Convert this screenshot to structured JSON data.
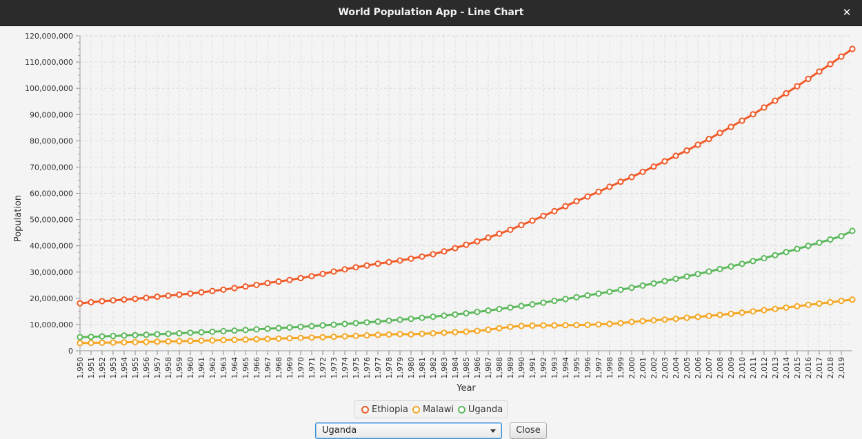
{
  "window": {
    "title": "World Population App - Line Chart",
    "close_glyph": "✕"
  },
  "controls": {
    "country_selected": "Uganda",
    "close_label": "Close"
  },
  "chart_data": {
    "type": "line",
    "title": "",
    "xlabel": "Year",
    "ylabel": "Population",
    "ylim": [
      0,
      120000000
    ],
    "yticks": [
      0,
      10000000,
      20000000,
      30000000,
      40000000,
      50000000,
      60000000,
      70000000,
      80000000,
      90000000,
      100000000,
      110000000,
      120000000
    ],
    "ytick_labels": [
      "0",
      "10,000,000",
      "20,000,000",
      "30,000,000",
      "40,000,000",
      "50,000,000",
      "60,000,000",
      "70,000,000",
      "80,000,000",
      "90,000,000",
      "100,000,000",
      "110,000,000",
      "120,000,000"
    ],
    "xlim": [
      1950,
      2020
    ],
    "x_start": 1950,
    "x_end": 2020,
    "x_tick_labels": [
      "1,950",
      "1,951",
      "1,952",
      "1,953",
      "1,954",
      "1,955",
      "1,956",
      "1,957",
      "1,958",
      "1,959",
      "1,960",
      "1,961",
      "1,962",
      "1,963",
      "1,964",
      "1,965",
      "1,966",
      "1,967",
      "1,968",
      "1,969",
      "1,970",
      "1,971",
      "1,972",
      "1,973",
      "1,974",
      "1,975",
      "1,976",
      "1,977",
      "1,978",
      "1,979",
      "1,980",
      "1,981",
      "1,982",
      "1,983",
      "1,984",
      "1,985",
      "1,986",
      "1,987",
      "1,988",
      "1,989",
      "1,990",
      "1,991",
      "1,992",
      "1,993",
      "1,994",
      "1,995",
      "1,996",
      "1,997",
      "1,998",
      "1,999",
      "2,000",
      "2,001",
      "2,002",
      "2,003",
      "2,004",
      "2,005",
      "2,006",
      "2,007",
      "2,008",
      "2,009",
      "2,010",
      "2,011",
      "2,012",
      "2,013",
      "2,014",
      "2,015",
      "2,016",
      "2,017",
      "2,018",
      "2,019"
    ],
    "grid": true,
    "legend_position": "bottom",
    "series": [
      {
        "name": "Ethiopia",
        "color": "#f05a28",
        "values": [
          18100000,
          18500000,
          18900000,
          19200000,
          19500000,
          19800000,
          20200000,
          20600000,
          21000000,
          21400000,
          21800000,
          22300000,
          22800000,
          23300000,
          23900000,
          24500000,
          25100000,
          25800000,
          26400000,
          27000000,
          27700000,
          28400000,
          29300000,
          30200000,
          31000000,
          31800000,
          32500000,
          33200000,
          33800000,
          34400000,
          35100000,
          35900000,
          36800000,
          37900000,
          39100000,
          40400000,
          41700000,
          43100000,
          44600000,
          46100000,
          47900000,
          49600000,
          51400000,
          53200000,
          55100000,
          57000000,
          58800000,
          60600000,
          62500000,
          64400000,
          66200000,
          68200000,
          70200000,
          72200000,
          74300000,
          76300000,
          78500000,
          80700000,
          83000000,
          85300000,
          87700000,
          90100000,
          92700000,
          95300000,
          98100000,
          100800000,
          103600000,
          106400000,
          109200000,
          112100000,
          115000000
        ]
      },
      {
        "name": "Malawi",
        "color": "#f5a623",
        "values": [
          2950000,
          3010000,
          3080000,
          3150000,
          3230000,
          3310000,
          3390000,
          3480000,
          3570000,
          3660000,
          3750000,
          3850000,
          3950000,
          4060000,
          4170000,
          4280000,
          4400000,
          4520000,
          4640000,
          4770000,
          4900000,
          5040000,
          5190000,
          5350000,
          5510000,
          5680000,
          5860000,
          6040000,
          6210000,
          6390000,
          6250000,
          6490000,
          6680000,
          6870000,
          7080000,
          7290000,
          7570000,
          8020000,
          8580000,
          9140000,
          9450000,
          9580000,
          9690000,
          9690000,
          9740000,
          9800000,
          9890000,
          10040000,
          10250000,
          10520000,
          10990000,
          11340000,
          11610000,
          11880000,
          12180000,
          12590000,
          12920000,
          13280000,
          13670000,
          14080000,
          14540000,
          15010000,
          15490000,
          15970000,
          16470000,
          16970000,
          17480000,
          17980000,
          18490000,
          19000000,
          19500000
        ]
      },
      {
        "name": "Uganda",
        "color": "#5cb85c",
        "values": [
          5200000,
          5340000,
          5490000,
          5640000,
          5800000,
          5960000,
          6130000,
          6310000,
          6490000,
          6680000,
          6870000,
          7070000,
          7270000,
          7480000,
          7700000,
          7930000,
          8160000,
          8400000,
          8650000,
          8900000,
          9150000,
          9410000,
          9690000,
          9960000,
          10240000,
          10520000,
          10820000,
          11140000,
          11480000,
          11820000,
          12180000,
          12570000,
          12970000,
          13390000,
          13850000,
          14300000,
          14820000,
          15340000,
          15900000,
          16460000,
          17080000,
          17700000,
          18360000,
          19050000,
          19710000,
          20410000,
          21110000,
          21800000,
          22510000,
          23260000,
          24020000,
          24840000,
          25670000,
          26560000,
          27440000,
          28330000,
          29250000,
          30200000,
          31160000,
          32140000,
          33150000,
          34210000,
          35300000,
          36420000,
          37600000,
          38800000,
          40000000,
          41200000,
          42400000,
          43700000,
          45700000
        ]
      }
    ]
  }
}
